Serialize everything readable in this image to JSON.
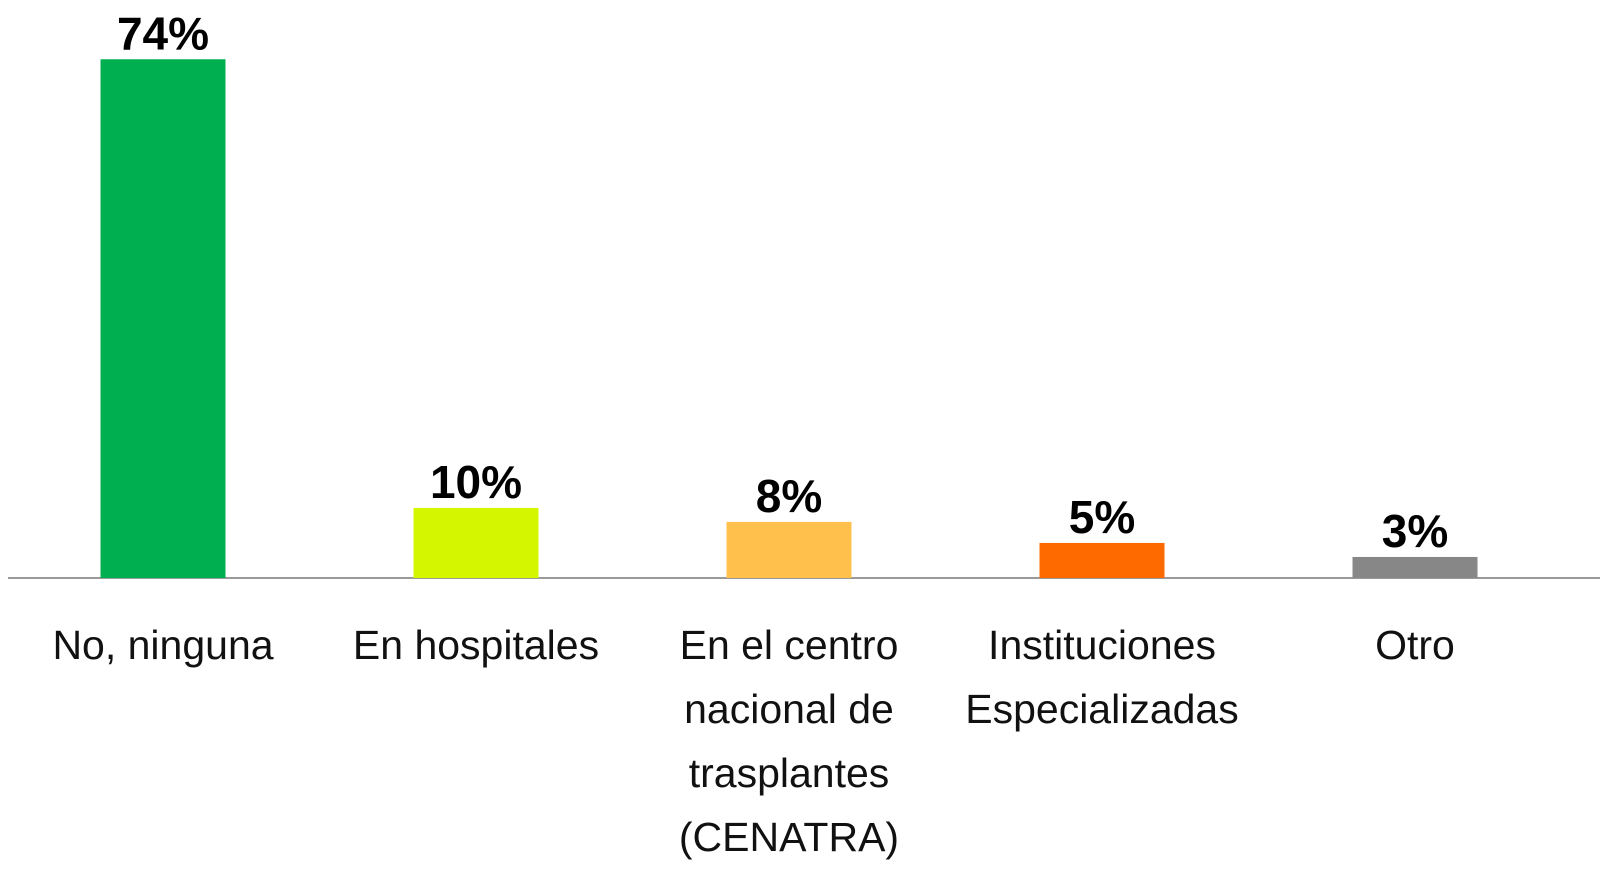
{
  "chart_data": {
    "type": "bar",
    "categories": [
      "No, ninguna",
      "En hospitales",
      "En el centro nacional de trasplantes (CENATRA)",
      "Instituciones Especializadas",
      "Otro"
    ],
    "values": [
      74,
      10,
      8,
      5,
      3
    ],
    "value_labels": [
      "74%",
      "10%",
      "8%",
      "5%",
      "3%"
    ],
    "colors": [
      "#00b050",
      "#d4f700",
      "#ffc04c",
      "#ff6a00",
      "#878787"
    ],
    "grid": false
  }
}
